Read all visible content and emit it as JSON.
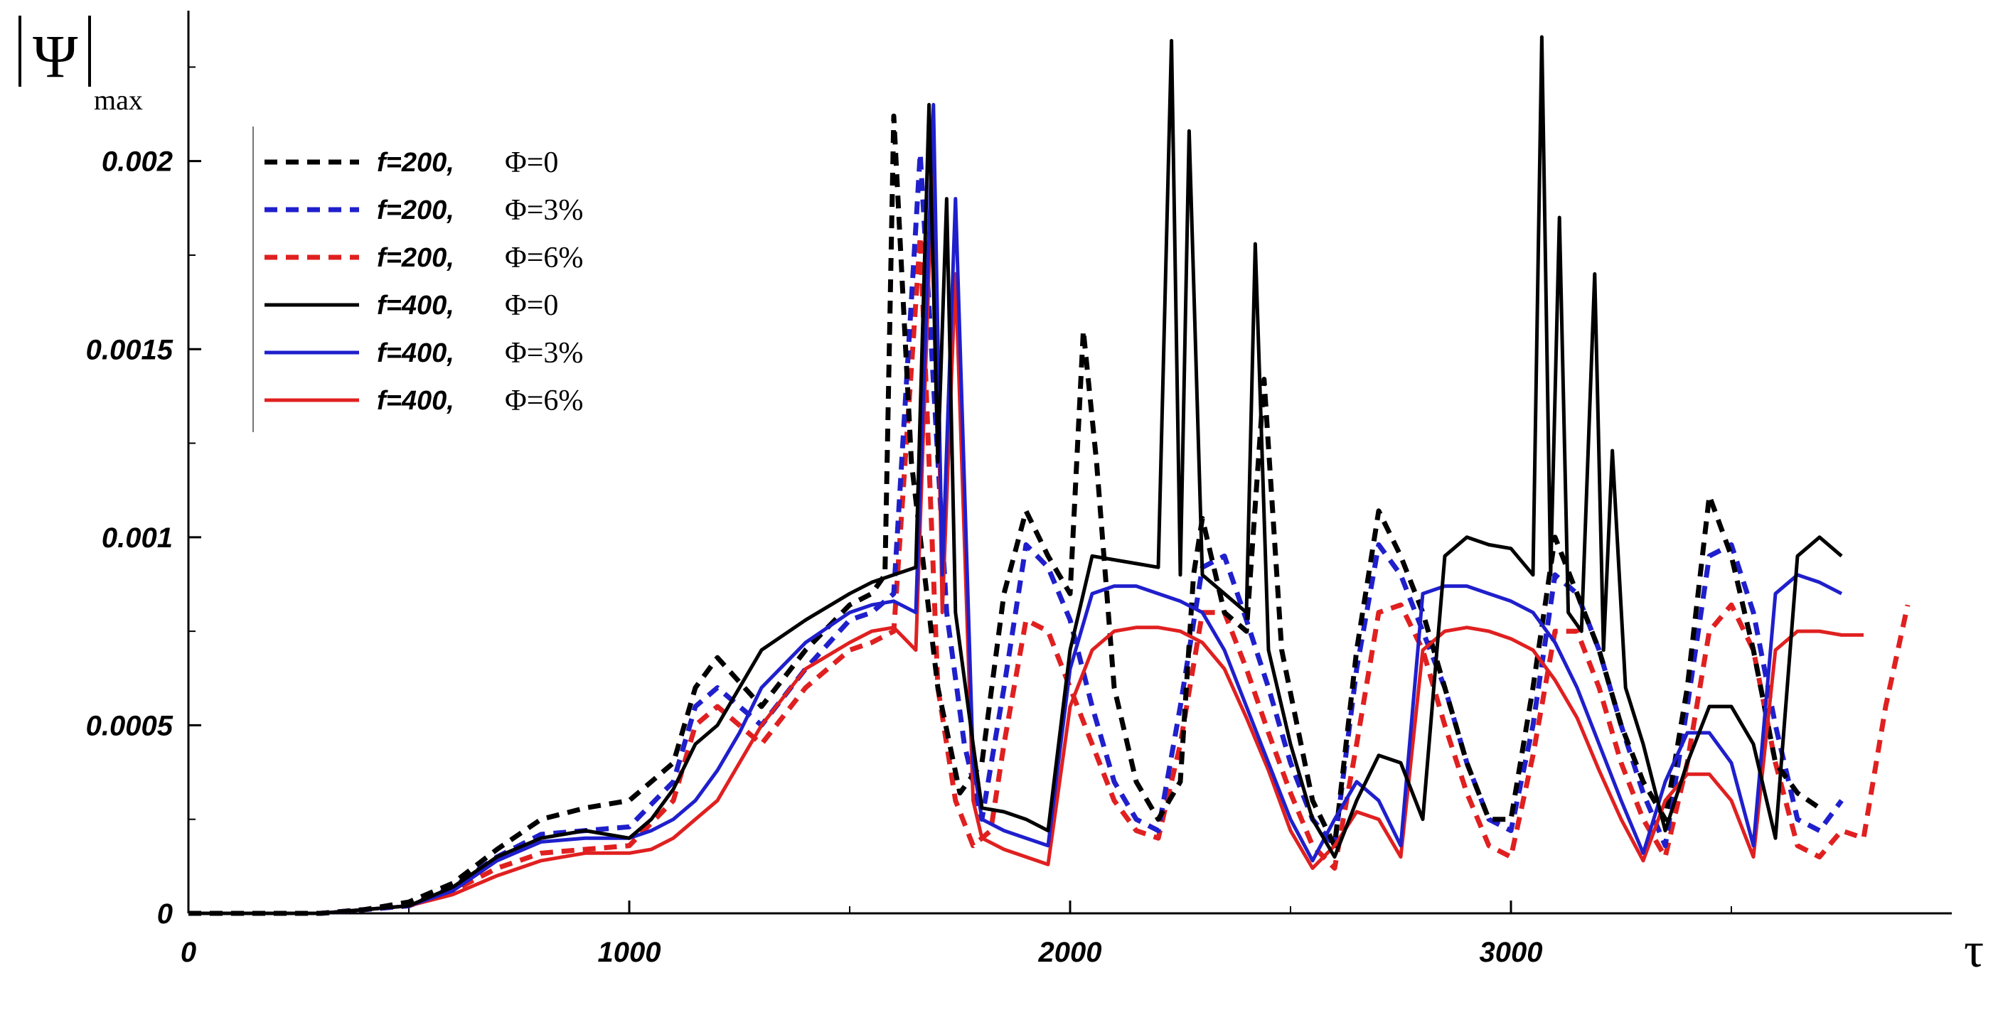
{
  "chart_data": {
    "type": "line",
    "title": "",
    "ylabel_symbol": "Ψ",
    "ylabel_subscript": "max",
    "xlabel": "τ",
    "xlim": [
      0,
      4000
    ],
    "ylim": [
      0,
      0.0024
    ],
    "x_ticks": [
      0,
      1000,
      2000,
      3000
    ],
    "x_tick_labels": [
      "0",
      "1000",
      "2000",
      "3000"
    ],
    "y_ticks": [
      0,
      0.0005,
      0.001,
      0.0015,
      0.002
    ],
    "y_tick_labels": [
      "0",
      "0.0005",
      "0.001",
      "0.0015",
      "0.002"
    ],
    "grid": false,
    "legend_position": "top-left",
    "series": [
      {
        "name": "f=200, Φ=0",
        "label_f": "f=200,",
        "label_phi": "Φ=0",
        "color": "#000000",
        "dash": "dashed",
        "x": [
          0,
          300,
          400,
          500,
          600,
          700,
          800,
          900,
          1000,
          1100,
          1150,
          1200,
          1300,
          1400,
          1500,
          1550,
          1580,
          1600,
          1640,
          1700,
          1750,
          1800,
          1850,
          1900,
          1950,
          2000,
          2030,
          2060,
          2100,
          2150,
          2200,
          2250,
          2280,
          2300,
          2350,
          2400,
          2440,
          2480,
          2550,
          2600,
          2650,
          2700,
          2750,
          2800,
          2850,
          2900,
          2950,
          3000,
          3050,
          3100,
          3150,
          3200,
          3250,
          3300,
          3350,
          3400,
          3450,
          3500,
          3550,
          3600,
          3650,
          3700
        ],
        "y": [
          0,
          0,
          1e-05,
          3e-05,
          8e-05,
          0.00017,
          0.00025,
          0.00028,
          0.0003,
          0.0004,
          0.0006,
          0.00068,
          0.00055,
          0.0007,
          0.00082,
          0.00085,
          0.0009,
          0.00212,
          0.0012,
          0.0006,
          0.00032,
          0.0004,
          0.00085,
          0.00107,
          0.00095,
          0.00085,
          0.00155,
          0.0012,
          0.0006,
          0.00035,
          0.00025,
          0.00035,
          0.0009,
          0.00105,
          0.0008,
          0.00075,
          0.00142,
          0.0007,
          0.0003,
          0.00018,
          0.0007,
          0.00107,
          0.00095,
          0.0008,
          0.0006,
          0.0004,
          0.00025,
          0.00025,
          0.0006,
          0.001,
          0.00085,
          0.0007,
          0.0005,
          0.00035,
          0.00025,
          0.0006,
          0.00111,
          0.00095,
          0.0007,
          0.0004,
          0.00032,
          0.00028
        ]
      },
      {
        "name": "f=200, Φ=3%",
        "label_f": "f=200,",
        "label_phi": "Φ=3%",
        "color": "#1f1fcc",
        "dash": "dashed",
        "x": [
          0,
          300,
          400,
          500,
          600,
          700,
          800,
          900,
          1000,
          1100,
          1150,
          1200,
          1300,
          1400,
          1500,
          1550,
          1600,
          1660,
          1720,
          1760,
          1800,
          1850,
          1900,
          1950,
          2000,
          2050,
          2100,
          2150,
          2200,
          2250,
          2300,
          2350,
          2400,
          2450,
          2500,
          2550,
          2600,
          2650,
          2700,
          2750,
          2800,
          2850,
          2900,
          2950,
          3000,
          3050,
          3100,
          3150,
          3200,
          3250,
          3300,
          3350,
          3400,
          3450,
          3500,
          3550,
          3600,
          3650,
          3700,
          3750
        ],
        "y": [
          0,
          0,
          1e-05,
          2e-05,
          7e-05,
          0.00015,
          0.00021,
          0.00022,
          0.00023,
          0.00035,
          0.00055,
          0.0006,
          0.0005,
          0.00065,
          0.00078,
          0.0008,
          0.00085,
          0.00202,
          0.0008,
          0.00045,
          0.00025,
          0.0006,
          0.00098,
          0.00092,
          0.00078,
          0.00055,
          0.00035,
          0.00025,
          0.00022,
          0.00055,
          0.00092,
          0.00095,
          0.00078,
          0.0006,
          0.0004,
          0.00025,
          0.00018,
          0.00065,
          0.00098,
          0.0009,
          0.00075,
          0.0006,
          0.0004,
          0.00025,
          0.00022,
          0.0005,
          0.0009,
          0.00085,
          0.0007,
          0.0005,
          0.00032,
          0.00018,
          0.00055,
          0.00095,
          0.00098,
          0.0008,
          0.0005,
          0.00025,
          0.00022,
          0.0003
        ]
      },
      {
        "name": "f=200, Φ=6%",
        "label_f": "f=200,",
        "label_phi": "Φ=6%",
        "color": "#e02020",
        "dash": "dashed",
        "x": [
          0,
          300,
          400,
          500,
          600,
          700,
          800,
          900,
          1000,
          1100,
          1150,
          1200,
          1300,
          1400,
          1500,
          1550,
          1600,
          1660,
          1700,
          1740,
          1780,
          1820,
          1850,
          1900,
          1950,
          2000,
          2050,
          2100,
          2150,
          2200,
          2250,
          2300,
          2350,
          2400,
          2450,
          2500,
          2550,
          2600,
          2650,
          2700,
          2750,
          2800,
          2850,
          2900,
          2950,
          3000,
          3050,
          3100,
          3150,
          3200,
          3250,
          3300,
          3350,
          3400,
          3450,
          3500,
          3550,
          3600,
          3650,
          3700,
          3750,
          3800,
          3850,
          3900
        ],
        "y": [
          0,
          0,
          1e-05,
          2e-05,
          6e-05,
          0.00012,
          0.00016,
          0.00017,
          0.00018,
          0.0003,
          0.0005,
          0.00055,
          0.00045,
          0.0006,
          0.0007,
          0.00072,
          0.00075,
          0.0018,
          0.0006,
          0.0003,
          0.00018,
          0.00022,
          0.00045,
          0.00078,
          0.00075,
          0.0006,
          0.00045,
          0.0003,
          0.00022,
          0.0002,
          0.00045,
          0.0008,
          0.0008,
          0.00065,
          0.00048,
          0.00032,
          0.00018,
          0.00012,
          0.00045,
          0.0008,
          0.00082,
          0.0007,
          0.0005,
          0.00032,
          0.00018,
          0.00015,
          0.00042,
          0.00075,
          0.00075,
          0.0006,
          0.0004,
          0.00025,
          0.00015,
          0.0004,
          0.00075,
          0.00082,
          0.0007,
          0.0004,
          0.00018,
          0.00015,
          0.00022,
          0.0002,
          0.00055,
          0.00082
        ]
      },
      {
        "name": "f=400, Φ=0",
        "label_f": "f=400,",
        "label_phi": "Φ=0",
        "color": "#000000",
        "dash": "solid",
        "x": [
          0,
          300,
          400,
          500,
          600,
          700,
          800,
          900,
          1000,
          1050,
          1100,
          1150,
          1200,
          1250,
          1300,
          1400,
          1500,
          1550,
          1600,
          1650,
          1680,
          1700,
          1720,
          1740,
          1780,
          1800,
          1850,
          1900,
          1950,
          2000,
          2050,
          2100,
          2150,
          2200,
          2230,
          2250,
          2270,
          2300,
          2350,
          2400,
          2420,
          2450,
          2500,
          2550,
          2600,
          2650,
          2700,
          2750,
          2800,
          2850,
          2900,
          2950,
          3000,
          3050,
          3070,
          3090,
          3110,
          3130,
          3160,
          3190,
          3210,
          3230,
          3260,
          3300,
          3350,
          3400,
          3450,
          3500,
          3550,
          3600,
          3650,
          3700,
          3750
        ],
        "y": [
          0,
          0,
          1e-05,
          2e-05,
          7e-05,
          0.00015,
          0.0002,
          0.00022,
          0.0002,
          0.00025,
          0.00033,
          0.00045,
          0.0005,
          0.0006,
          0.0007,
          0.00078,
          0.00085,
          0.00088,
          0.0009,
          0.00092,
          0.00215,
          0.0012,
          0.0019,
          0.0008,
          0.00045,
          0.00028,
          0.00027,
          0.00025,
          0.00022,
          0.0007,
          0.00095,
          0.00094,
          0.00093,
          0.00092,
          0.00232,
          0.0009,
          0.00208,
          0.0009,
          0.00085,
          0.0008,
          0.00178,
          0.0007,
          0.00045,
          0.00025,
          0.00015,
          0.0003,
          0.00042,
          0.0004,
          0.00025,
          0.00095,
          0.001,
          0.00098,
          0.00097,
          0.0009,
          0.00233,
          0.0009,
          0.00185,
          0.0008,
          0.00075,
          0.0017,
          0.0007,
          0.00123,
          0.0006,
          0.00045,
          0.00022,
          0.0004,
          0.00055,
          0.00055,
          0.00045,
          0.0002,
          0.00095,
          0.001,
          0.00095
        ]
      },
      {
        "name": "f=400, Φ=3%",
        "label_f": "f=400,",
        "label_phi": "Φ=3%",
        "color": "#1f1fcc",
        "dash": "solid",
        "x": [
          0,
          300,
          400,
          500,
          600,
          700,
          800,
          900,
          1000,
          1050,
          1100,
          1150,
          1200,
          1250,
          1300,
          1400,
          1500,
          1550,
          1600,
          1650,
          1690,
          1710,
          1740,
          1780,
          1800,
          1850,
          1900,
          1950,
          2000,
          2050,
          2100,
          2150,
          2200,
          2250,
          2300,
          2350,
          2400,
          2450,
          2500,
          2550,
          2600,
          2650,
          2700,
          2750,
          2800,
          2850,
          2900,
          2950,
          3000,
          3050,
          3100,
          3150,
          3200,
          3250,
          3300,
          3350,
          3400,
          3450,
          3500,
          3550,
          3600,
          3650,
          3700,
          3750
        ],
        "y": [
          0,
          0,
          1e-05,
          2e-05,
          6e-05,
          0.00014,
          0.00019,
          0.0002,
          0.0002,
          0.00022,
          0.00025,
          0.0003,
          0.00038,
          0.00048,
          0.0006,
          0.00072,
          0.0008,
          0.00082,
          0.00083,
          0.0008,
          0.00215,
          0.0009,
          0.0019,
          0.0004,
          0.00025,
          0.00022,
          0.0002,
          0.00018,
          0.00065,
          0.00085,
          0.00087,
          0.00087,
          0.00085,
          0.00083,
          0.0008,
          0.0007,
          0.00055,
          0.0004,
          0.00025,
          0.00014,
          0.00025,
          0.00035,
          0.0003,
          0.00018,
          0.00085,
          0.00087,
          0.00087,
          0.00085,
          0.00083,
          0.0008,
          0.00072,
          0.0006,
          0.00045,
          0.0003,
          0.00016,
          0.00035,
          0.00048,
          0.00048,
          0.0004,
          0.00018,
          0.00085,
          0.0009,
          0.00088,
          0.00085
        ]
      },
      {
        "name": "f=400, Φ=6%",
        "label_f": "f=400,",
        "label_phi": "Φ=6%",
        "color": "#e02020",
        "dash": "solid",
        "x": [
          0,
          300,
          400,
          500,
          600,
          700,
          800,
          900,
          1000,
          1050,
          1100,
          1150,
          1200,
          1250,
          1300,
          1400,
          1500,
          1550,
          1600,
          1650,
          1690,
          1710,
          1740,
          1780,
          1800,
          1850,
          1900,
          1950,
          2000,
          2050,
          2100,
          2150,
          2200,
          2250,
          2300,
          2350,
          2400,
          2450,
          2500,
          2550,
          2600,
          2650,
          2700,
          2750,
          2800,
          2850,
          2900,
          2950,
          3000,
          3050,
          3100,
          3150,
          3200,
          3250,
          3300,
          3350,
          3400,
          3450,
          3500,
          3550,
          3600,
          3650,
          3700,
          3750,
          3800
        ],
        "y": [
          0,
          0,
          1e-05,
          2e-05,
          5e-05,
          0.0001,
          0.00014,
          0.00016,
          0.00016,
          0.00017,
          0.0002,
          0.00025,
          0.0003,
          0.0004,
          0.0005,
          0.00065,
          0.00072,
          0.00075,
          0.00076,
          0.0007,
          0.00205,
          0.0008,
          0.0017,
          0.0003,
          0.0002,
          0.00017,
          0.00015,
          0.00013,
          0.00055,
          0.0007,
          0.00075,
          0.00076,
          0.00076,
          0.00075,
          0.00072,
          0.00065,
          0.00052,
          0.00038,
          0.00022,
          0.00012,
          0.00018,
          0.00027,
          0.00025,
          0.00015,
          0.0007,
          0.00075,
          0.00076,
          0.00075,
          0.00073,
          0.0007,
          0.00062,
          0.00052,
          0.00038,
          0.00025,
          0.00014,
          0.0003,
          0.00037,
          0.00037,
          0.0003,
          0.00015,
          0.0007,
          0.00075,
          0.00075,
          0.00074,
          0.00074
        ]
      }
    ]
  }
}
